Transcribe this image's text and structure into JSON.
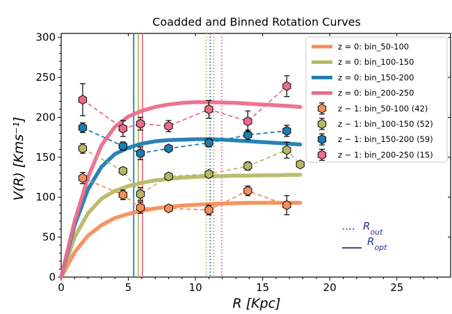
{
  "chart_data": {
    "type": "line",
    "title": "Coadded and Binned Rotation Curves",
    "xlabel": "R [Kpc]",
    "ylabel": "V(R) [Kms⁻¹]",
    "xlim": [
      0,
      29
    ],
    "ylim": [
      0,
      305
    ],
    "xticks": [
      "0",
      "5",
      "10",
      "15",
      "20",
      "25"
    ],
    "xtick_values": [
      0,
      5,
      10,
      15,
      20,
      25
    ],
    "yticks": [
      "0",
      "50",
      "100",
      "150",
      "200",
      "250",
      "300"
    ],
    "ytick_values": [
      0,
      50,
      100,
      150,
      200,
      250,
      300
    ],
    "grid": false,
    "legend_position": "top-right",
    "model_series": [
      {
        "name": "z = 0: bin_50-100",
        "color": "#f58e5a",
        "x": [
          0,
          1,
          2,
          3,
          4,
          5,
          6,
          7,
          8,
          9,
          10,
          11,
          12,
          13,
          14,
          15,
          16,
          17,
          17.8
        ],
        "y": [
          0,
          31,
          52,
          65,
          74,
          79,
          83,
          86,
          88,
          89.5,
          90.5,
          91.5,
          92,
          92.5,
          93,
          93,
          93,
          93,
          93
        ]
      },
      {
        "name": "z = 0: bin_100-150",
        "color": "#b7b867",
        "x": [
          0,
          1,
          2,
          3,
          4,
          5,
          6,
          7,
          8,
          9,
          10,
          11,
          12,
          13,
          14,
          15,
          16,
          17,
          17.8
        ],
        "y": [
          0,
          50,
          80,
          98,
          108,
          114,
          118,
          121,
          123,
          124.5,
          125.5,
          126,
          126.5,
          127,
          127,
          127.5,
          127.5,
          128,
          128
        ]
      },
      {
        "name": "z = 0: bin_150-200",
        "color": "#1e7cb0",
        "x": [
          0,
          1,
          2,
          3,
          4,
          5,
          6,
          7,
          8,
          9,
          10,
          11,
          12,
          13,
          14,
          15,
          16,
          17,
          17.8
        ],
        "y": [
          0,
          65,
          110,
          138,
          154,
          162,
          167,
          170,
          171.5,
          172,
          172.5,
          172.5,
          172,
          171,
          170,
          169,
          168,
          167,
          166
        ]
      },
      {
        "name": "z = 0: bin_200-250",
        "color": "#ec6b8b",
        "x": [
          0,
          1,
          2,
          3,
          4,
          5,
          6,
          7,
          8,
          9,
          10,
          11,
          12,
          13,
          14,
          15,
          16,
          17,
          17.8
        ],
        "y": [
          0,
          70,
          125,
          165,
          188,
          201,
          208,
          213,
          216,
          218,
          219,
          219,
          218.5,
          218,
          217,
          216,
          215,
          214,
          213
        ]
      }
    ],
    "data_series": [
      {
        "name": "z ~ 1: bin_50-100 (42)",
        "color": "#f58e5a",
        "points": [
          {
            "x": 1.6,
            "y": 124,
            "err": 7
          },
          {
            "x": 4.6,
            "y": 103,
            "err": 6
          },
          {
            "x": 5.9,
            "y": 87,
            "err": 7
          },
          {
            "x": 8.0,
            "y": 86,
            "err": 4
          },
          {
            "x": 11.0,
            "y": 84,
            "err": 6
          },
          {
            "x": 13.9,
            "y": 108,
            "err": 6
          },
          {
            "x": 16.8,
            "y": 90,
            "err": 12
          }
        ]
      },
      {
        "name": "z ~ 1: bin_100-150 (52)",
        "color": "#b7b867",
        "points": [
          {
            "x": 1.6,
            "y": 161,
            "err": 6
          },
          {
            "x": 4.6,
            "y": 133,
            "err": 4
          },
          {
            "x": 5.9,
            "y": 104,
            "err": 8
          },
          {
            "x": 8.0,
            "y": 126,
            "err": 4
          },
          {
            "x": 11.0,
            "y": 129,
            "err": 4
          },
          {
            "x": 13.9,
            "y": 139,
            "err": 5
          },
          {
            "x": 16.8,
            "y": 159,
            "err": 10
          },
          {
            "x": 17.8,
            "y": 141,
            "err": 0
          }
        ]
      },
      {
        "name": "z ~ 1: bin_150-200 (59)",
        "color": "#1e7cb0",
        "points": [
          {
            "x": 1.6,
            "y": 187,
            "err": 6
          },
          {
            "x": 4.6,
            "y": 164,
            "err": 5
          },
          {
            "x": 5.9,
            "y": 155,
            "err": 8
          },
          {
            "x": 8.0,
            "y": 161,
            "err": 4
          },
          {
            "x": 11.0,
            "y": 168,
            "err": 5
          },
          {
            "x": 13.9,
            "y": 178,
            "err": 6
          },
          {
            "x": 16.8,
            "y": 183,
            "err": 7
          }
        ]
      },
      {
        "name": "z ~ 1: bin_200-250 (15)",
        "color": "#ec6b8b",
        "points": [
          {
            "x": 1.6,
            "y": 222,
            "err": 20
          },
          {
            "x": 4.6,
            "y": 186,
            "err": 10
          },
          {
            "x": 5.9,
            "y": 192,
            "err": 8
          },
          {
            "x": 8.0,
            "y": 189,
            "err": 7
          },
          {
            "x": 11.0,
            "y": 210,
            "err": 11
          },
          {
            "x": 13.9,
            "y": 195,
            "err": 13
          },
          {
            "x": 16.8,
            "y": 239,
            "err": 13
          }
        ]
      }
    ],
    "vertical_lines": [
      {
        "x": 5.4,
        "style": "solid",
        "color": "#1e7cb0"
      },
      {
        "x": 5.75,
        "style": "solid",
        "color": "#b7b867"
      },
      {
        "x": 6.05,
        "style": "solid",
        "color": "#ec6b8b"
      },
      {
        "x": 10.8,
        "style": "dotted",
        "color": "#b7b867"
      },
      {
        "x": 11.1,
        "style": "dotted",
        "color": "#1e7cb0"
      },
      {
        "x": 11.35,
        "style": "dotted",
        "color": "#f58e5a"
      },
      {
        "x": 11.95,
        "style": "dotted",
        "color": "#ec6b8b"
      }
    ],
    "annotations": [
      {
        "text": "R_out",
        "style": "dotted"
      },
      {
        "text": "R_opt",
        "style": "solid"
      }
    ],
    "annotation_color": "#1f2f8f"
  }
}
